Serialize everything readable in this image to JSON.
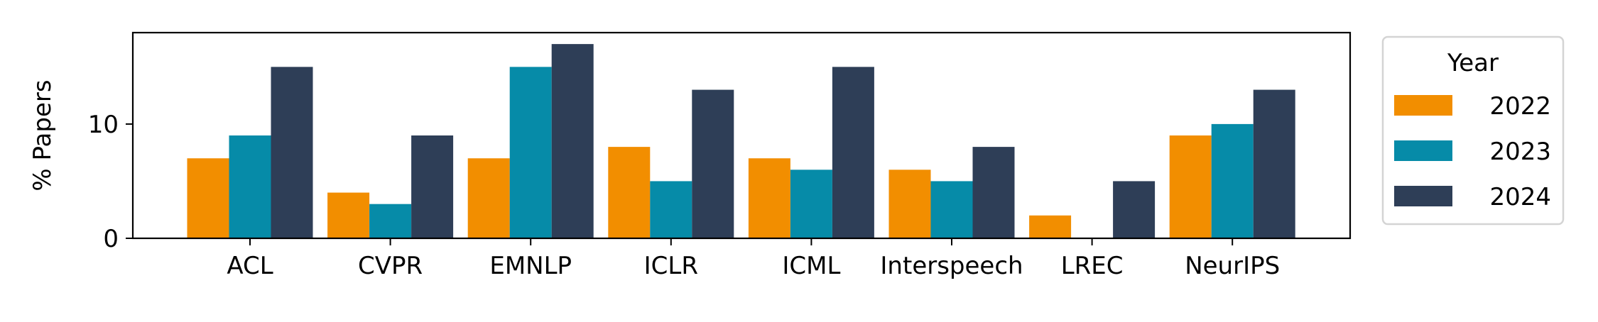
{
  "chart_data": {
    "type": "bar",
    "title": "",
    "xlabel": "",
    "ylabel": "% Papers",
    "categories": [
      "ACL",
      "CVPR",
      "EMNLP",
      "ICLR",
      "ICML",
      "Interspeech",
      "LREC",
      "NeurIPS"
    ],
    "series": [
      {
        "name": "2022",
        "color": "#F28E00",
        "values": [
          7,
          4,
          7,
          8,
          7,
          6,
          2,
          9
        ]
      },
      {
        "name": "2023",
        "color": "#068BA8",
        "values": [
          9,
          3,
          15,
          5,
          6,
          5,
          0,
          10
        ]
      },
      {
        "name": "2024",
        "color": "#2E3E57",
        "values": [
          15,
          9,
          17,
          13,
          15,
          8,
          5,
          13
        ]
      }
    ],
    "ylim": [
      0,
      18
    ],
    "yticks": [
      0,
      10
    ],
    "grid": false,
    "legend": {
      "title": "Year",
      "placement": "outside right"
    }
  }
}
